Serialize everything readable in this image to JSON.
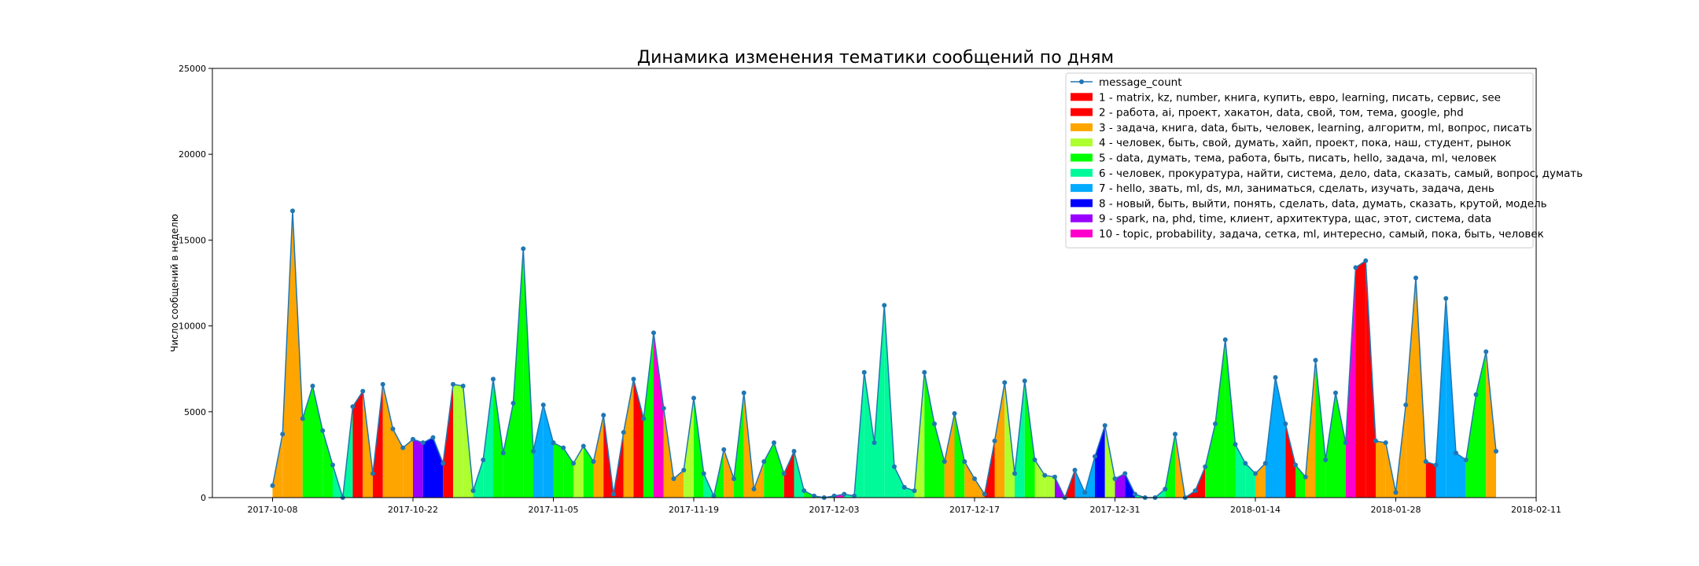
{
  "chart_data": {
    "type": "area",
    "title": "Динамика изменения тематики сообщений по дням",
    "xlabel": "",
    "ylabel": "Число сообщений в неделю",
    "x_start": "2017-10-02",
    "x_end": "2018-02-11",
    "ylim": [
      0,
      25000
    ],
    "yticks": [
      0,
      5000,
      10000,
      15000,
      20000,
      25000
    ],
    "xticks": [
      "2017-10-08",
      "2017-10-22",
      "2017-11-05",
      "2017-11-19",
      "2017-12-03",
      "2017-12-17",
      "2017-12-31",
      "2018-01-14",
      "2018-01-28",
      "2018-02-11"
    ],
    "grid": false,
    "legend_position": "top-right",
    "line_series": {
      "name": "message_count",
      "color": "#1f77b4"
    },
    "topics": [
      {
        "id": 1,
        "label": "1 - matrix, kz, number, книга, купить, евро, learning, писать, сервис, see",
        "color": "#ff0000"
      },
      {
        "id": 2,
        "label": "2 - работа, ai, проект, хакатон, data, свой, том, тема, google, phd",
        "color": "#ff0000"
      },
      {
        "id": 3,
        "label": "3 - задача, книга, data, быть, человек, learning, алгоритм, ml, вопрос, писать",
        "color": "#ffa500"
      },
      {
        "id": 4,
        "label": "4 - человек, быть, свой, думать, хайп, проект, пока, наш, студент, рынок",
        "color": "#adff2f"
      },
      {
        "id": 5,
        "label": "5 - data, думать, тема, работа, быть, писать, hello, задача, ml, человек",
        "color": "#00ff00"
      },
      {
        "id": 6,
        "label": "6 - человек, прокуратура, найти, система, дело, data, сказать, самый, вопрос, думать",
        "color": "#00fa9a"
      },
      {
        "id": 7,
        "label": "7 - hello, звать, ml, ds, мл, заниматься, сделать, изучать, задача, день",
        "color": "#00aaff"
      },
      {
        "id": 8,
        "label": "8 - новый, быть, выйти, понять, сделать, data, думать, сказать, крутой, модель",
        "color": "#0000ff"
      },
      {
        "id": 9,
        "label": "9 - spark, na, phd, time, клиент, архитектура, щас, этот, система, data",
        "color": "#9900ff"
      },
      {
        "id": 10,
        "label": "10 - topic, probability, задача, сетка, ml, интересно, самый, пока, быть, человек",
        "color": "#ff00cc"
      }
    ],
    "points": [
      {
        "date": "2017-10-08",
        "value": 700,
        "topic": 3
      },
      {
        "date": "2017-10-09",
        "value": 3700,
        "topic": 3
      },
      {
        "date": "2017-10-10",
        "value": 16700,
        "topic": 3
      },
      {
        "date": "2017-10-11",
        "value": 4600,
        "topic": 5
      },
      {
        "date": "2017-10-12",
        "value": 6500,
        "topic": 5
      },
      {
        "date": "2017-10-13",
        "value": 3900,
        "topic": 5
      },
      {
        "date": "2017-10-14",
        "value": 1900,
        "topic": 6
      },
      {
        "date": "2017-10-15",
        "value": 0,
        "topic": 6
      },
      {
        "date": "2017-10-16",
        "value": 5300,
        "topic": 1
      },
      {
        "date": "2017-10-17",
        "value": 6200,
        "topic": 3
      },
      {
        "date": "2017-10-18",
        "value": 1400,
        "topic": 1
      },
      {
        "date": "2017-10-19",
        "value": 6600,
        "topic": 3
      },
      {
        "date": "2017-10-20",
        "value": 4000,
        "topic": 3
      },
      {
        "date": "2017-10-21",
        "value": 2900,
        "topic": 3
      },
      {
        "date": "2017-10-22",
        "value": 3400,
        "topic": 9
      },
      {
        "date": "2017-10-23",
        "value": 3200,
        "topic": 8
      },
      {
        "date": "2017-10-24",
        "value": 3500,
        "topic": 8
      },
      {
        "date": "2017-10-25",
        "value": 2000,
        "topic": 2
      },
      {
        "date": "2017-10-26",
        "value": 6600,
        "topic": 4
      },
      {
        "date": "2017-10-27",
        "value": 6500,
        "topic": 4
      },
      {
        "date": "2017-10-28",
        "value": 400,
        "topic": 6
      },
      {
        "date": "2017-10-29",
        "value": 2200,
        "topic": 6
      },
      {
        "date": "2017-10-30",
        "value": 6900,
        "topic": 5
      },
      {
        "date": "2017-10-31",
        "value": 2600,
        "topic": 5
      },
      {
        "date": "2017-11-01",
        "value": 5500,
        "topic": 5
      },
      {
        "date": "2017-11-02",
        "value": 14500,
        "topic": 5
      },
      {
        "date": "2017-11-03",
        "value": 2700,
        "topic": 7
      },
      {
        "date": "2017-11-04",
        "value": 5400,
        "topic": 7
      },
      {
        "date": "2017-11-05",
        "value": 3200,
        "topic": 5
      },
      {
        "date": "2017-11-06",
        "value": 2900,
        "topic": 5
      },
      {
        "date": "2017-11-07",
        "value": 2000,
        "topic": 4
      },
      {
        "date": "2017-11-08",
        "value": 3000,
        "topic": 5
      },
      {
        "date": "2017-11-09",
        "value": 2100,
        "topic": 3
      },
      {
        "date": "2017-11-10",
        "value": 4800,
        "topic": 1
      },
      {
        "date": "2017-11-11",
        "value": 200,
        "topic": 1
      },
      {
        "date": "2017-11-12",
        "value": 3800,
        "topic": 3
      },
      {
        "date": "2017-11-13",
        "value": 6900,
        "topic": 1
      },
      {
        "date": "2017-11-14",
        "value": 4600,
        "topic": 5
      },
      {
        "date": "2017-11-15",
        "value": 9600,
        "topic": 10
      },
      {
        "date": "2017-11-16",
        "value": 5200,
        "topic": 3
      },
      {
        "date": "2017-11-17",
        "value": 1100,
        "topic": 3
      },
      {
        "date": "2017-11-18",
        "value": 1600,
        "topic": 4
      },
      {
        "date": "2017-11-19",
        "value": 5800,
        "topic": 5
      },
      {
        "date": "2017-11-20",
        "value": 1400,
        "topic": 6
      },
      {
        "date": "2017-11-21",
        "value": 100,
        "topic": 5
      },
      {
        "date": "2017-11-22",
        "value": 2800,
        "topic": 3
      },
      {
        "date": "2017-11-23",
        "value": 1100,
        "topic": 5
      },
      {
        "date": "2017-11-24",
        "value": 6100,
        "topic": 3
      },
      {
        "date": "2017-11-25",
        "value": 500,
        "topic": 3
      },
      {
        "date": "2017-11-26",
        "value": 2100,
        "topic": 5
      },
      {
        "date": "2017-11-27",
        "value": 3200,
        "topic": 5
      },
      {
        "date": "2017-11-28",
        "value": 1400,
        "topic": 1
      },
      {
        "date": "2017-11-29",
        "value": 2700,
        "topic": 6
      },
      {
        "date": "2017-11-30",
        "value": 400,
        "topic": 5
      },
      {
        "date": "2017-12-01",
        "value": 100,
        "topic": 5
      },
      {
        "date": "2017-12-02",
        "value": 0,
        "topic": 5
      },
      {
        "date": "2017-12-03",
        "value": 100,
        "topic": 10
      },
      {
        "date": "2017-12-04",
        "value": 200,
        "topic": 6
      },
      {
        "date": "2017-12-05",
        "value": 100,
        "topic": 6
      },
      {
        "date": "2017-12-06",
        "value": 7300,
        "topic": 6
      },
      {
        "date": "2017-12-07",
        "value": 3200,
        "topic": 6
      },
      {
        "date": "2017-12-08",
        "value": 11200,
        "topic": 6
      },
      {
        "date": "2017-12-09",
        "value": 1800,
        "topic": 6
      },
      {
        "date": "2017-12-10",
        "value": 600,
        "topic": 6
      },
      {
        "date": "2017-12-11",
        "value": 400,
        "topic": 4
      },
      {
        "date": "2017-12-12",
        "value": 7300,
        "topic": 5
      },
      {
        "date": "2017-12-13",
        "value": 4300,
        "topic": 5
      },
      {
        "date": "2017-12-14",
        "value": 2100,
        "topic": 3
      },
      {
        "date": "2017-12-15",
        "value": 4900,
        "topic": 5
      },
      {
        "date": "2017-12-16",
        "value": 2100,
        "topic": 3
      },
      {
        "date": "2017-12-17",
        "value": 1100,
        "topic": 3
      },
      {
        "date": "2017-12-18",
        "value": 200,
        "topic": 1
      },
      {
        "date": "2017-12-19",
        "value": 3300,
        "topic": 3
      },
      {
        "date": "2017-12-20",
        "value": 6700,
        "topic": 4
      },
      {
        "date": "2017-12-21",
        "value": 1400,
        "topic": 6
      },
      {
        "date": "2017-12-22",
        "value": 6800,
        "topic": 5
      },
      {
        "date": "2017-12-23",
        "value": 2200,
        "topic": 4
      },
      {
        "date": "2017-12-24",
        "value": 1300,
        "topic": 4
      },
      {
        "date": "2017-12-25",
        "value": 1200,
        "topic": 9
      },
      {
        "date": "2017-12-26",
        "value": 0,
        "topic": 1
      },
      {
        "date": "2017-12-27",
        "value": 1600,
        "topic": 7
      },
      {
        "date": "2017-12-28",
        "value": 300,
        "topic": 7
      },
      {
        "date": "2017-12-29",
        "value": 2400,
        "topic": 8
      },
      {
        "date": "2017-12-30",
        "value": 4200,
        "topic": 4
      },
      {
        "date": "2017-12-31",
        "value": 1100,
        "topic": 9
      },
      {
        "date": "2018-01-01",
        "value": 1400,
        "topic": 8
      },
      {
        "date": "2018-01-02",
        "value": 200,
        "topic": 6
      },
      {
        "date": "2018-01-03",
        "value": 0,
        "topic": 6
      },
      {
        "date": "2018-01-04",
        "value": 0,
        "topic": 6
      },
      {
        "date": "2018-01-05",
        "value": 500,
        "topic": 5
      },
      {
        "date": "2018-01-06",
        "value": 3700,
        "topic": 3
      },
      {
        "date": "2018-01-07",
        "value": 0,
        "topic": 1
      },
      {
        "date": "2018-01-08",
        "value": 400,
        "topic": 1
      },
      {
        "date": "2018-01-09",
        "value": 1800,
        "topic": 5
      },
      {
        "date": "2018-01-10",
        "value": 4300,
        "topic": 5
      },
      {
        "date": "2018-01-11",
        "value": 9200,
        "topic": 5
      },
      {
        "date": "2018-01-12",
        "value": 3100,
        "topic": 6
      },
      {
        "date": "2018-01-13",
        "value": 2000,
        "topic": 6
      },
      {
        "date": "2018-01-14",
        "value": 1400,
        "topic": 3
      },
      {
        "date": "2018-01-15",
        "value": 2000,
        "topic": 7
      },
      {
        "date": "2018-01-16",
        "value": 7000,
        "topic": 7
      },
      {
        "date": "2018-01-17",
        "value": 4300,
        "topic": 1
      },
      {
        "date": "2018-01-18",
        "value": 1900,
        "topic": 5
      },
      {
        "date": "2018-01-19",
        "value": 1200,
        "topic": 3
      },
      {
        "date": "2018-01-20",
        "value": 8000,
        "topic": 5
      },
      {
        "date": "2018-01-21",
        "value": 2200,
        "topic": 5
      },
      {
        "date": "2018-01-22",
        "value": 6100,
        "topic": 5
      },
      {
        "date": "2018-01-23",
        "value": 3200,
        "topic": 10
      },
      {
        "date": "2018-01-24",
        "value": 13400,
        "topic": 1
      },
      {
        "date": "2018-01-25",
        "value": 13800,
        "topic": 1
      },
      {
        "date": "2018-01-26",
        "value": 3300,
        "topic": 3
      },
      {
        "date": "2018-01-27",
        "value": 3200,
        "topic": 3
      },
      {
        "date": "2018-01-28",
        "value": 300,
        "topic": 3
      },
      {
        "date": "2018-01-29",
        "value": 5400,
        "topic": 3
      },
      {
        "date": "2018-01-30",
        "value": 12800,
        "topic": 3
      },
      {
        "date": "2018-01-31",
        "value": 2100,
        "topic": 2
      },
      {
        "date": "2018-02-01",
        "value": 1900,
        "topic": 7
      },
      {
        "date": "2018-02-02",
        "value": 11600,
        "topic": 7
      },
      {
        "date": "2018-02-03",
        "value": 2600,
        "topic": 7
      },
      {
        "date": "2018-02-04",
        "value": 2200,
        "topic": 5
      },
      {
        "date": "2018-02-05",
        "value": 6000,
        "topic": 5
      },
      {
        "date": "2018-02-06",
        "value": 8500,
        "topic": 3
      },
      {
        "date": "2018-02-07",
        "value": 2700,
        "topic": 3
      }
    ]
  }
}
